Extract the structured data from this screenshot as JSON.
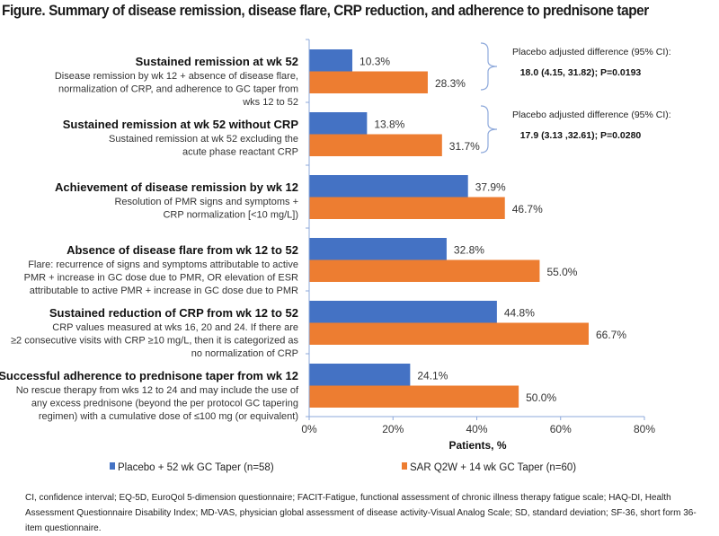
{
  "figure_title": "Figure. Summary of disease remission, disease flare, CRP reduction, and adherence to prednisone taper",
  "chart_data": {
    "type": "bar",
    "orientation": "horizontal",
    "title": "Summary of disease remission, disease flare, CRP reduction, and adherence to prednisone taper",
    "xlabel": "Patients, %",
    "ylabel": "",
    "xlim": [
      0,
      80
    ],
    "x_ticks": [
      0,
      20,
      40,
      60,
      80
    ],
    "x_tick_labels": [
      "0%",
      "20%",
      "40%",
      "60%",
      "80%"
    ],
    "grid": false,
    "legend_position": "bottom",
    "categories": [
      {
        "title": "Sustained remission at wk 52",
        "description": [
          "Disease remission by wk 12 + absence of disease flare,",
          "normalization of CRP, and adherence to GC taper from",
          "wks 12 to 52"
        ]
      },
      {
        "title": "Sustained remission at wk 52 without CRP",
        "description": [
          "Sustained remission at wk 52 excluding the",
          "acute phase reactant CRP"
        ]
      },
      {
        "title": "Achievement of disease remission by wk 12",
        "description": [
          "Resolution of PMR signs and symptoms +",
          "CRP normalization [<10 mg/L])"
        ]
      },
      {
        "title": "Absence of disease flare from wk 12 to 52",
        "description": [
          "Flare: recurrence of signs and symptoms attributable to active",
          "PMR + increase in GC dose due to PMR, OR elevation of ESR",
          "attributable to active PMR + increase in GC dose due to PMR"
        ]
      },
      {
        "title": "Sustained reduction of CRP from wk 12 to 52",
        "description": [
          "CRP values measured at wks 16, 20 and 24. If there are",
          "≥2 consecutive visits with CRP ≥10 mg/L, then it is categorized as",
          "no normalization of CRP"
        ]
      },
      {
        "title": "Successful adherence to prednisone taper from wk 12",
        "description": [
          "No rescue therapy from wks 12 to 24 and may include the use of",
          "any excess prednisone (beyond the per protocol GC tapering",
          "regimen) with a cumulative dose of ≤100 mg (or equivalent)"
        ]
      }
    ],
    "series": [
      {
        "name": "Placebo + 52 wk GC Taper (n=58)",
        "color": "#4472C4",
        "values": [
          10.3,
          13.8,
          37.9,
          32.8,
          44.8,
          24.1
        ],
        "labels": [
          "10.3%",
          "13.8%",
          "37.9%",
          "32.8%",
          "44.8%",
          "24.1%"
        ]
      },
      {
        "name": "SAR Q2W + 14 wk GC Taper (n=60)",
        "color": "#ED7D31",
        "values": [
          28.3,
          31.7,
          46.7,
          55.0,
          66.7,
          50.0
        ],
        "labels": [
          "28.3%",
          "31.7%",
          "46.7%",
          "55.0%",
          "66.7%",
          "50.0%"
        ]
      }
    ],
    "annotations": [
      {
        "category_index": 0,
        "heading": "Placebo adjusted difference (95% CI):",
        "value": "18.0 (4.15, 31.82); P=0.0193"
      },
      {
        "category_index": 1,
        "heading": "Placebo adjusted difference (95% CI):",
        "value": "17.9 (3.13 ,32.61); P=0.0280"
      }
    ]
  },
  "footnote": "CI, confidence interval; EQ-5D, EuroQol 5-dimension questionnaire; FACIT-Fatigue, functional assessment of chronic illness therapy fatigue scale; HAQ-DI, Health Assessment Questionnaire Disability Index; MD-VAS, physician global assessment of disease activity-Visual Analog Scale; SD, standard deviation; SF-36, short form 36-item questionnaire.",
  "colors": {
    "axis": "#8EA9DB",
    "bracket": "#8EA9DB"
  }
}
